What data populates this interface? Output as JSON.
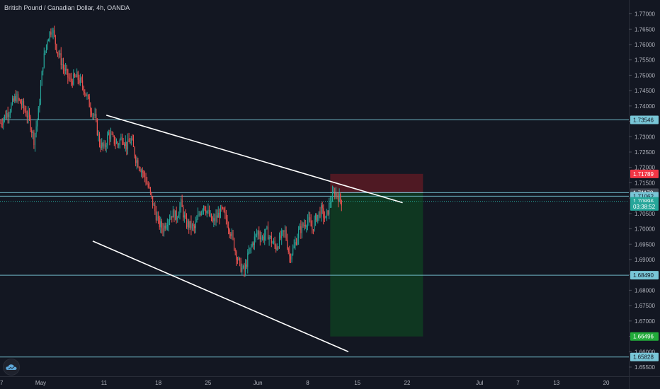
{
  "title": "British Pound / Canadian Dollar, 4h, OANDA",
  "colors": {
    "background": "#131722",
    "up": "#26a69a",
    "down": "#ef5350",
    "hline": "#79c6d7",
    "axis_text": "#b2b5be",
    "stop_zone": "#5a1a23",
    "target_zone": "#0f3b21"
  },
  "logo_icon": "cloud-icon",
  "price_axis": {
    "ticks": [
      "1.77000",
      "1.76500",
      "1.76000",
      "1.75500",
      "1.75000",
      "1.74500",
      "1.74000",
      "1.73500",
      "1.73000",
      "1.72500",
      "1.72000",
      "1.71500",
      "1.71000",
      "1.70500",
      "1.70000",
      "1.69500",
      "1.69000",
      "1.68500",
      "1.68000",
      "1.67500",
      "1.67000",
      "1.66500",
      "1.66000",
      "1.65500"
    ],
    "labels": [
      {
        "text": "1.73546",
        "value": 1.73546,
        "bg": "#79c6d7",
        "fg": "#131722"
      },
      {
        "text": "1.71789",
        "value": 1.71789,
        "bg": "#f23645",
        "fg": "#ffffff"
      },
      {
        "text": "1.71178",
        "value": 1.71178,
        "bg": "#434651",
        "fg": "#ffffff"
      },
      {
        "text": "1.71062",
        "value": 1.71062,
        "bg": "#79c6d7",
        "fg": "#131722"
      },
      {
        "text": "1.70896",
        "value": 1.70896,
        "bg": "#26a69a",
        "fg": "#ffffff"
      },
      {
        "text": "03:38:52",
        "value": 1.7073,
        "bg": "#26a69a",
        "fg": "#ffffff"
      },
      {
        "text": "1.68490",
        "value": 1.6849,
        "bg": "#79c6d7",
        "fg": "#131722"
      },
      {
        "text": "1.66496",
        "value": 1.66496,
        "bg": "#22ab3a",
        "fg": "#ffffff"
      },
      {
        "text": "1.65828",
        "value": 1.65828,
        "bg": "#79c6d7",
        "fg": "#131722"
      }
    ]
  },
  "time_axis": {
    "labels": [
      {
        "text": "27",
        "bar": 0
      },
      {
        "text": "May",
        "bar": 18
      },
      {
        "text": "11",
        "bar": 46
      },
      {
        "text": "18",
        "bar": 70
      },
      {
        "text": "25",
        "bar": 92
      },
      {
        "text": "Jun",
        "bar": 114
      },
      {
        "text": "8",
        "bar": 136
      },
      {
        "text": "15",
        "bar": 158
      },
      {
        "text": "22",
        "bar": 180
      },
      {
        "text": "Jul",
        "bar": 212
      },
      {
        "text": "7",
        "bar": 229
      },
      {
        "text": "13",
        "bar": 246
      },
      {
        "text": "20",
        "bar": 268
      }
    ]
  },
  "chart_data": {
    "type": "candlestick",
    "symbol": "British Pound / Canadian Dollar",
    "interval": "4h",
    "source": "OANDA",
    "ylim": [
      1.652,
      1.7745
    ],
    "xlim": [
      0,
      278
    ],
    "last_price": 1.70896,
    "close_path": [
      [
        0,
        1.7345
      ],
      [
        4,
        1.7385
      ],
      [
        7,
        1.743
      ],
      [
        10,
        1.74
      ],
      [
        13,
        1.7355
      ],
      [
        15,
        1.729
      ],
      [
        17,
        1.738
      ],
      [
        19,
        1.754
      ],
      [
        21,
        1.762
      ],
      [
        23,
        1.7655
      ],
      [
        25,
        1.759
      ],
      [
        28,
        1.7525
      ],
      [
        31,
        1.748
      ],
      [
        34,
        1.7495
      ],
      [
        37,
        1.746
      ],
      [
        40,
        1.7395
      ],
      [
        42,
        1.736
      ],
      [
        44,
        1.728
      ],
      [
        46,
        1.726
      ],
      [
        48,
        1.731
      ],
      [
        50,
        1.729
      ],
      [
        52,
        1.7275
      ],
      [
        54,
        1.73
      ],
      [
        56,
        1.727
      ],
      [
        58,
        1.729
      ],
      [
        60,
        1.723
      ],
      [
        62,
        1.72
      ],
      [
        64,
        1.717
      ],
      [
        66,
        1.7125
      ],
      [
        68,
        1.707
      ],
      [
        70,
        1.702
      ],
      [
        72,
        1.7
      ],
      [
        74,
        1.703
      ],
      [
        76,
        1.705
      ],
      [
        78,
        1.704
      ],
      [
        80,
        1.708
      ],
      [
        82,
        1.702
      ],
      [
        84,
        1.701
      ],
      [
        86,
        1.7
      ],
      [
        88,
        1.705
      ],
      [
        90,
        1.708
      ],
      [
        92,
        1.705
      ],
      [
        94,
        1.702
      ],
      [
        96,
        1.704
      ],
      [
        98,
        1.706
      ],
      [
        100,
        1.703
      ],
      [
        102,
        1.699
      ],
      [
        104,
        1.693
      ],
      [
        106,
        1.688
      ],
      [
        108,
        1.686
      ],
      [
        110,
        1.692
      ],
      [
        112,
        1.696
      ],
      [
        114,
        1.699
      ],
      [
        116,
        1.697
      ],
      [
        118,
        1.699
      ],
      [
        120,
        1.696
      ],
      [
        122,
        1.694
      ],
      [
        124,
        1.697
      ],
      [
        126,
        1.699
      ],
      [
        128,
        1.691
      ],
      [
        130,
        1.694
      ],
      [
        132,
        1.699
      ],
      [
        134,
        1.701
      ],
      [
        136,
        1.703
      ],
      [
        138,
        1.7
      ],
      [
        140,
        1.704
      ],
      [
        142,
        1.706
      ],
      [
        144,
        1.703
      ],
      [
        146,
        1.709
      ],
      [
        148,
        1.712
      ],
      [
        150,
        1.71
      ],
      [
        151,
        1.70896
      ]
    ],
    "trendlines": [
      {
        "name": "upper",
        "from": [
          47,
          1.737
        ],
        "to": [
          178,
          1.7085
        ],
        "color": "#ffffff"
      },
      {
        "name": "lower",
        "from": [
          41,
          1.696
        ],
        "to": [
          154,
          1.66
        ],
        "color": "#ffffff"
      }
    ],
    "horizontal_levels": [
      1.73546,
      1.71178,
      1.71062,
      1.6849,
      1.65828
    ],
    "position": {
      "type": "short",
      "entry": 1.71178,
      "stop": 1.71789,
      "target": 1.66496,
      "x_start": 146,
      "x_end": 187
    }
  }
}
